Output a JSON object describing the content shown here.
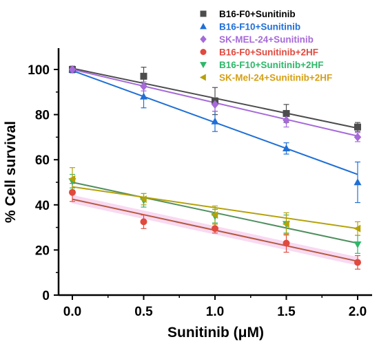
{
  "chart_data": {
    "type": "scatter",
    "xlabel": "Sunitinib (μM)",
    "ylabel": "% Cell survival",
    "xlim": [
      -0.15,
      2.12
    ],
    "ylim": [
      0,
      110
    ],
    "x_ticks": [
      "0.0",
      "0.5",
      "1.0",
      "1.5",
      "2.0"
    ],
    "y_ticks": [
      "0",
      "20",
      "40",
      "60",
      "80",
      "100"
    ],
    "legend_position": "top-right",
    "grid": false,
    "series": [
      {
        "name": "B16-F0+Sunitinib",
        "color": "#4d4d4d",
        "marker": "square",
        "label_color": "#000000",
        "x": [
          0,
          0.5,
          1.0,
          1.5,
          2.0
        ],
        "values": [
          100,
          97,
          86,
          80.5,
          74.5
        ],
        "errors": [
          1.5,
          4,
          6,
          4,
          2
        ],
        "fit": [
          100.5,
          74
        ]
      },
      {
        "name": "B16-F10+Sunitinib",
        "color": "#1f6fd6",
        "marker": "triangle-up",
        "label_color": "#1f6fd6",
        "x": [
          0,
          0.5,
          1.0,
          1.5,
          2.0
        ],
        "values": [
          100,
          88,
          77,
          65,
          50
        ],
        "errors": [
          1.5,
          5,
          4.5,
          2.5,
          9
        ],
        "fit": [
          99.5,
          53.5
        ]
      },
      {
        "name": "SK-MEL-24+Sunitinib",
        "color": "#a66ad9",
        "marker": "diamond",
        "label_color": "#a66ad9",
        "x": [
          0,
          0.5,
          1.0,
          1.5,
          2.0
        ],
        "values": [
          100,
          92.5,
          84.5,
          77.5,
          70
        ],
        "errors": [
          1.5,
          2,
          3,
          3,
          2
        ],
        "fit": [
          100,
          70.5
        ]
      },
      {
        "name": "B16-F0+Sunitinib+2HF",
        "color": "#e04a3f",
        "marker": "circle",
        "label_color": "#e04a3f",
        "fit_color": "#b35a3e",
        "x": [
          0,
          0.5,
          1.0,
          1.5,
          2.0
        ],
        "values": [
          45.5,
          32.5,
          29.5,
          23,
          14.5
        ],
        "errors": [
          4,
          3,
          2,
          4,
          3
        ],
        "fit": [
          42.5,
          15
        ]
      },
      {
        "name": "B16-F10+Sunitinib+2HF",
        "color": "#2fb76a",
        "marker": "triangle-down",
        "label_color": "#2fb76a",
        "fit_color": "#4f8f5f",
        "x": [
          0,
          0.5,
          1.0,
          1.5,
          2.0
        ],
        "values": [
          50.5,
          42,
          35,
          31.5,
          22.5
        ],
        "errors": [
          3,
          3,
          3,
          4,
          4
        ],
        "fit": [
          50,
          23
        ]
      },
      {
        "name": "SK-Mel-24+Sunitinib+2HF",
        "color": "#b5a10a",
        "marker": "triangle-left",
        "label_color": "#d4a015",
        "x": [
          0,
          0.5,
          1.0,
          1.5,
          2.0
        ],
        "values": [
          51.5,
          42.5,
          35.5,
          31.5,
          29.5
        ],
        "errors": [
          5,
          2.5,
          4,
          5,
          3
        ],
        "fit": [
          48,
          29.5
        ]
      }
    ]
  }
}
